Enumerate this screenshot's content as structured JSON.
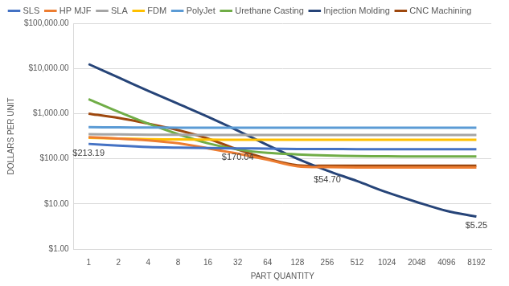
{
  "chart_data": {
    "type": "line",
    "log": "y",
    "grid": true,
    "legend": "top",
    "marker": "none",
    "x_label": "PART QUANTITY",
    "y_label": "DOLLARS PER UNIT",
    "categories": [
      "1",
      "2",
      "4",
      "8",
      "16",
      "32",
      "64",
      "128",
      "256",
      "512",
      "1024",
      "2048",
      "4096",
      "8192"
    ],
    "ylim": [
      1,
      100000
    ],
    "yticks": [
      {
        "value": 1,
        "label": "$1.00"
      },
      {
        "value": 10,
        "label": "$10.00"
      },
      {
        "value": 100,
        "label": "$100.00"
      },
      {
        "value": 1000,
        "label": "$1,000.00"
      },
      {
        "value": 10000,
        "label": "$10,000.00"
      },
      {
        "value": 100000,
        "label": "$100,000.00"
      }
    ],
    "series": [
      {
        "name": "SLS",
        "color": "#4472c4",
        "values": [
          213.19,
          195,
          182,
          176,
          172,
          170.04,
          167,
          165,
          164,
          163,
          163,
          162,
          162,
          162
        ]
      },
      {
        "name": "HP MJF",
        "color": "#ed7d31",
        "values": [
          300,
          280,
          255,
          220,
          170,
          130,
          95,
          68,
          65,
          64,
          64,
          64,
          64,
          64
        ]
      },
      {
        "name": "SLA",
        "color": "#a5a5a5",
        "values": [
          350,
          345,
          340,
          338,
          336,
          335,
          335,
          335,
          335,
          335,
          335,
          335,
          335,
          335
        ]
      },
      {
        "name": "FDM",
        "color": "#ffc000",
        "values": [
          290,
          280,
          272,
          268,
          265,
          263,
          262,
          262,
          262,
          262,
          262,
          262,
          262,
          262
        ]
      },
      {
        "name": "PolyJet",
        "color": "#5b9bd5",
        "values": [
          500,
          495,
          490,
          488,
          486,
          485,
          485,
          485,
          485,
          485,
          485,
          485,
          485,
          485
        ]
      },
      {
        "name": "Urethane Casting",
        "color": "#70ad47",
        "values": [
          2100,
          1100,
          600,
          350,
          220,
          160,
          135,
          125,
          118,
          115,
          113,
          112,
          112,
          112
        ]
      },
      {
        "name": "Injection Molding",
        "color": "#264478",
        "values": [
          12500,
          6300,
          3200,
          1650,
          850,
          420,
          200,
          100,
          54.7,
          32,
          18,
          11,
          7,
          5.25
        ]
      },
      {
        "name": "CNC Machining",
        "color": "#9e480e",
        "values": [
          1000,
          800,
          600,
          430,
          280,
          160,
          100,
          72,
          70,
          70,
          70,
          70,
          70,
          70
        ]
      }
    ],
    "annotations": [
      {
        "x": "1",
        "y": 213.19,
        "label": "$213.19"
      },
      {
        "x": "32",
        "y": 170.04,
        "label": "$170.04"
      },
      {
        "x": "256",
        "y": 54.7,
        "label": "$54.70"
      },
      {
        "x": "8192",
        "y": 5.25,
        "label": "$5.25"
      }
    ]
  }
}
